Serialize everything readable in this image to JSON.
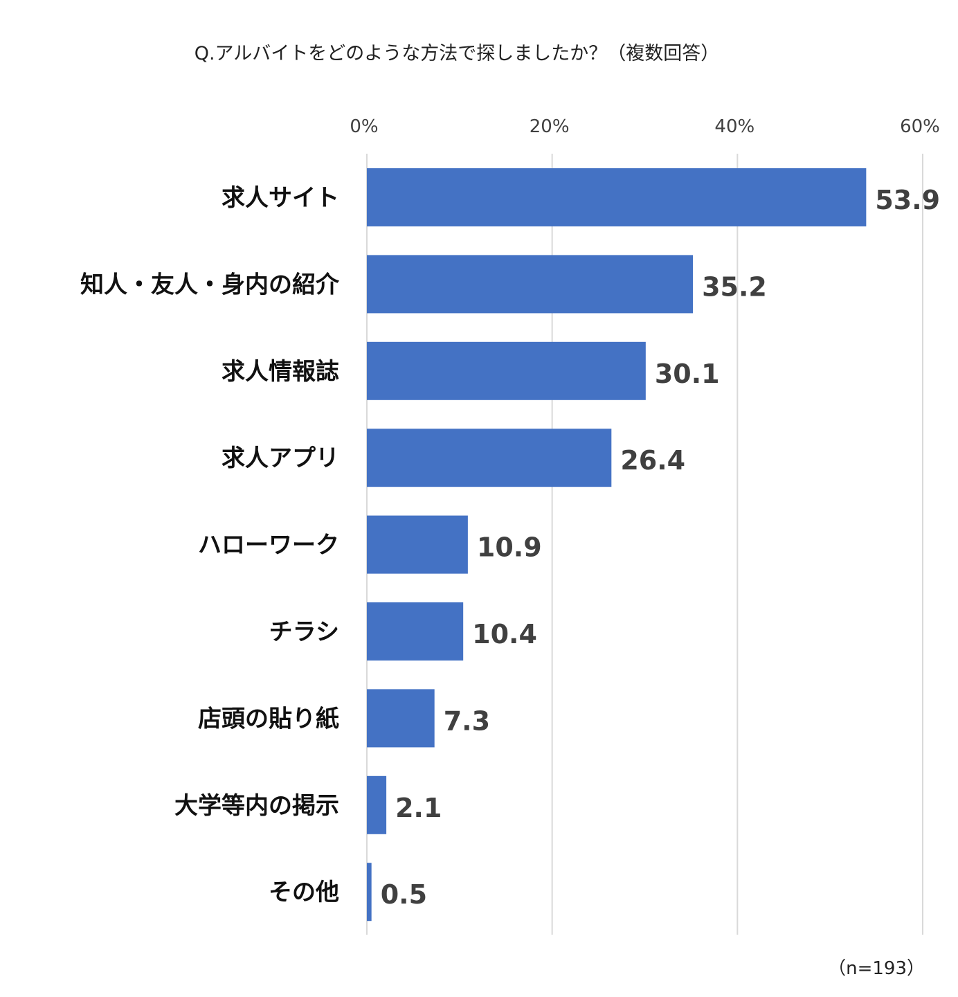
{
  "chart_data": {
    "type": "bar",
    "orientation": "horizontal",
    "title": "Q.アルバイトをどのような方法で探しましたか？（複数回答）",
    "categories": [
      "求人サイト",
      "知人・友人・身内の紹介",
      "求人情報誌",
      "求人アプリ",
      "ハローワーク",
      "チラシ",
      "店頭の貼り紙",
      "大学等内の掲示",
      "その他"
    ],
    "values": [
      53.9,
      35.2,
      30.1,
      26.4,
      10.9,
      10.4,
      7.3,
      2.1,
      0.5
    ],
    "value_labels": [
      "53.9",
      "35.2",
      "30.1",
      "26.4",
      "10.9",
      "10.4",
      "7.3",
      "2.1",
      "0.5"
    ],
    "xlim": [
      0,
      60
    ],
    "ticks": [
      0,
      20,
      40,
      60
    ],
    "tick_labels": [
      "0%",
      "20%",
      "40%",
      "60%"
    ],
    "axis_position": "top",
    "grid": true,
    "bar_color": "#4472c4",
    "note": "（n=193）"
  }
}
